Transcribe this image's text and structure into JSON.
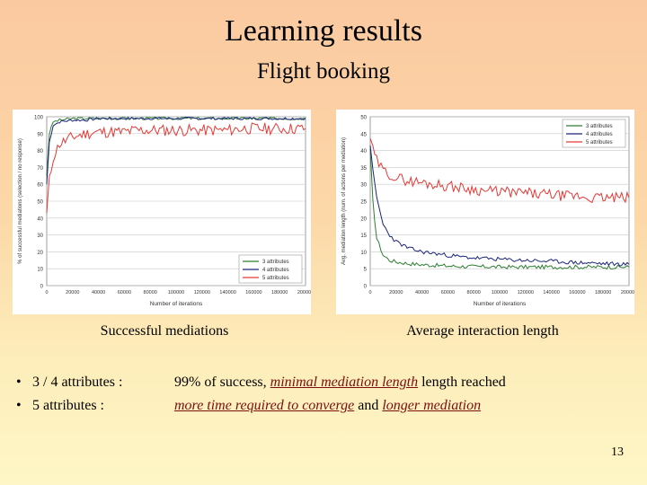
{
  "slide": {
    "title": "Learning results",
    "subtitle": "Flight booking",
    "caption_left": "Successful mediations",
    "caption_right": "Average interaction length",
    "page_number": "13",
    "bullets": [
      {
        "label": "3 / 4 attributes :",
        "parts": [
          {
            "text": "99% of success, ",
            "emphasis": false
          },
          {
            "text": "minimal mediation length",
            "emphasis": true
          },
          {
            "text": " length reached",
            "emphasis": false
          }
        ]
      },
      {
        "label": "5 attributes :",
        "parts": [
          {
            "text": "more time required to converge",
            "emphasis": true
          },
          {
            "text": " and ",
            "emphasis": false
          },
          {
            "text": "longer mediation",
            "emphasis": true
          }
        ]
      }
    ],
    "emphasis_color": "#7a0e0e"
  },
  "chart_data": [
    {
      "type": "line",
      "xlabel": "Number of iterations",
      "ylabel": "% of successful mediations (selection / no response)",
      "xlim": [
        0,
        200000
      ],
      "ylim": [
        0,
        100
      ],
      "xticks": [
        0,
        20000,
        40000,
        60000,
        80000,
        100000,
        120000,
        140000,
        160000,
        180000,
        200000
      ],
      "yticks": [
        0,
        10,
        20,
        30,
        40,
        50,
        60,
        70,
        80,
        90,
        100
      ],
      "grid": true,
      "legend_position": "bottom-right",
      "x": [
        0,
        2000,
        5000,
        10000,
        20000,
        30000,
        40000,
        50000,
        60000,
        70000,
        80000,
        90000,
        100000,
        110000,
        120000,
        130000,
        140000,
        150000,
        160000,
        170000,
        180000,
        190000,
        200000
      ],
      "series": [
        {
          "name": "3 attributes",
          "color": "#2e7d32",
          "values": [
            65,
            90,
            97,
            98,
            99,
            99,
            99,
            99,
            99,
            99,
            99,
            99,
            99,
            99,
            99,
            99,
            99,
            99,
            99,
            99,
            99,
            99,
            99
          ]
        },
        {
          "name": "4 attributes",
          "color": "#1a237e",
          "values": [
            60,
            85,
            95,
            97,
            98,
            98,
            99,
            99,
            99,
            99,
            99,
            99,
            99,
            99,
            99,
            99,
            99,
            99,
            99,
            99,
            99,
            99,
            99
          ]
        },
        {
          "name": "5 attributes",
          "color": "#e53935",
          "values": [
            42,
            62,
            76,
            84,
            88,
            90,
            91,
            91,
            91,
            92,
            92,
            92,
            92,
            92,
            92,
            92,
            92,
            93,
            93,
            93,
            93,
            93,
            93
          ]
        }
      ]
    },
    {
      "type": "line",
      "xlabel": "Number of iterations",
      "ylabel": "Avg. mediation length (num. of actions per mediation)",
      "xlim": [
        0,
        200000
      ],
      "ylim": [
        0,
        50
      ],
      "xticks": [
        0,
        20000,
        40000,
        60000,
        80000,
        100000,
        120000,
        140000,
        160000,
        180000,
        200000
      ],
      "yticks": [
        0,
        5,
        10,
        15,
        20,
        25,
        30,
        35,
        40,
        45,
        50
      ],
      "grid": true,
      "legend_position": "top-right",
      "x": [
        0,
        2000,
        5000,
        10000,
        15000,
        20000,
        30000,
        40000,
        50000,
        60000,
        70000,
        80000,
        90000,
        100000,
        110000,
        120000,
        130000,
        140000,
        150000,
        160000,
        170000,
        180000,
        190000,
        200000
      ],
      "series": [
        {
          "name": "3 attributes",
          "color": "#2e7d32",
          "values": [
            40,
            25,
            14,
            9,
            7.5,
            7,
            6.5,
            6.2,
            6,
            5.8,
            5.7,
            5.6,
            5.6,
            5.5,
            5.5,
            5.5,
            5.5,
            5.5,
            5.5,
            5.5,
            5.5,
            5.5,
            5.5,
            5.5
          ]
        },
        {
          "name": "4 attributes",
          "color": "#1a237e",
          "values": [
            42,
            34,
            26,
            18,
            15,
            13,
            11,
            10,
            9.5,
            9,
            8.5,
            8.2,
            8,
            7.8,
            7.6,
            7.5,
            7.3,
            7.2,
            7,
            6.8,
            6.7,
            6.5,
            6.4,
            6.3
          ]
        },
        {
          "name": "5 attributes",
          "color": "#e53935",
          "values": [
            44,
            40,
            37,
            34,
            33,
            32,
            31,
            30.5,
            30,
            29.5,
            29,
            28.5,
            28,
            28,
            27.5,
            27.5,
            27,
            27,
            26.5,
            26.5,
            26,
            26,
            26,
            26
          ]
        }
      ]
    }
  ]
}
